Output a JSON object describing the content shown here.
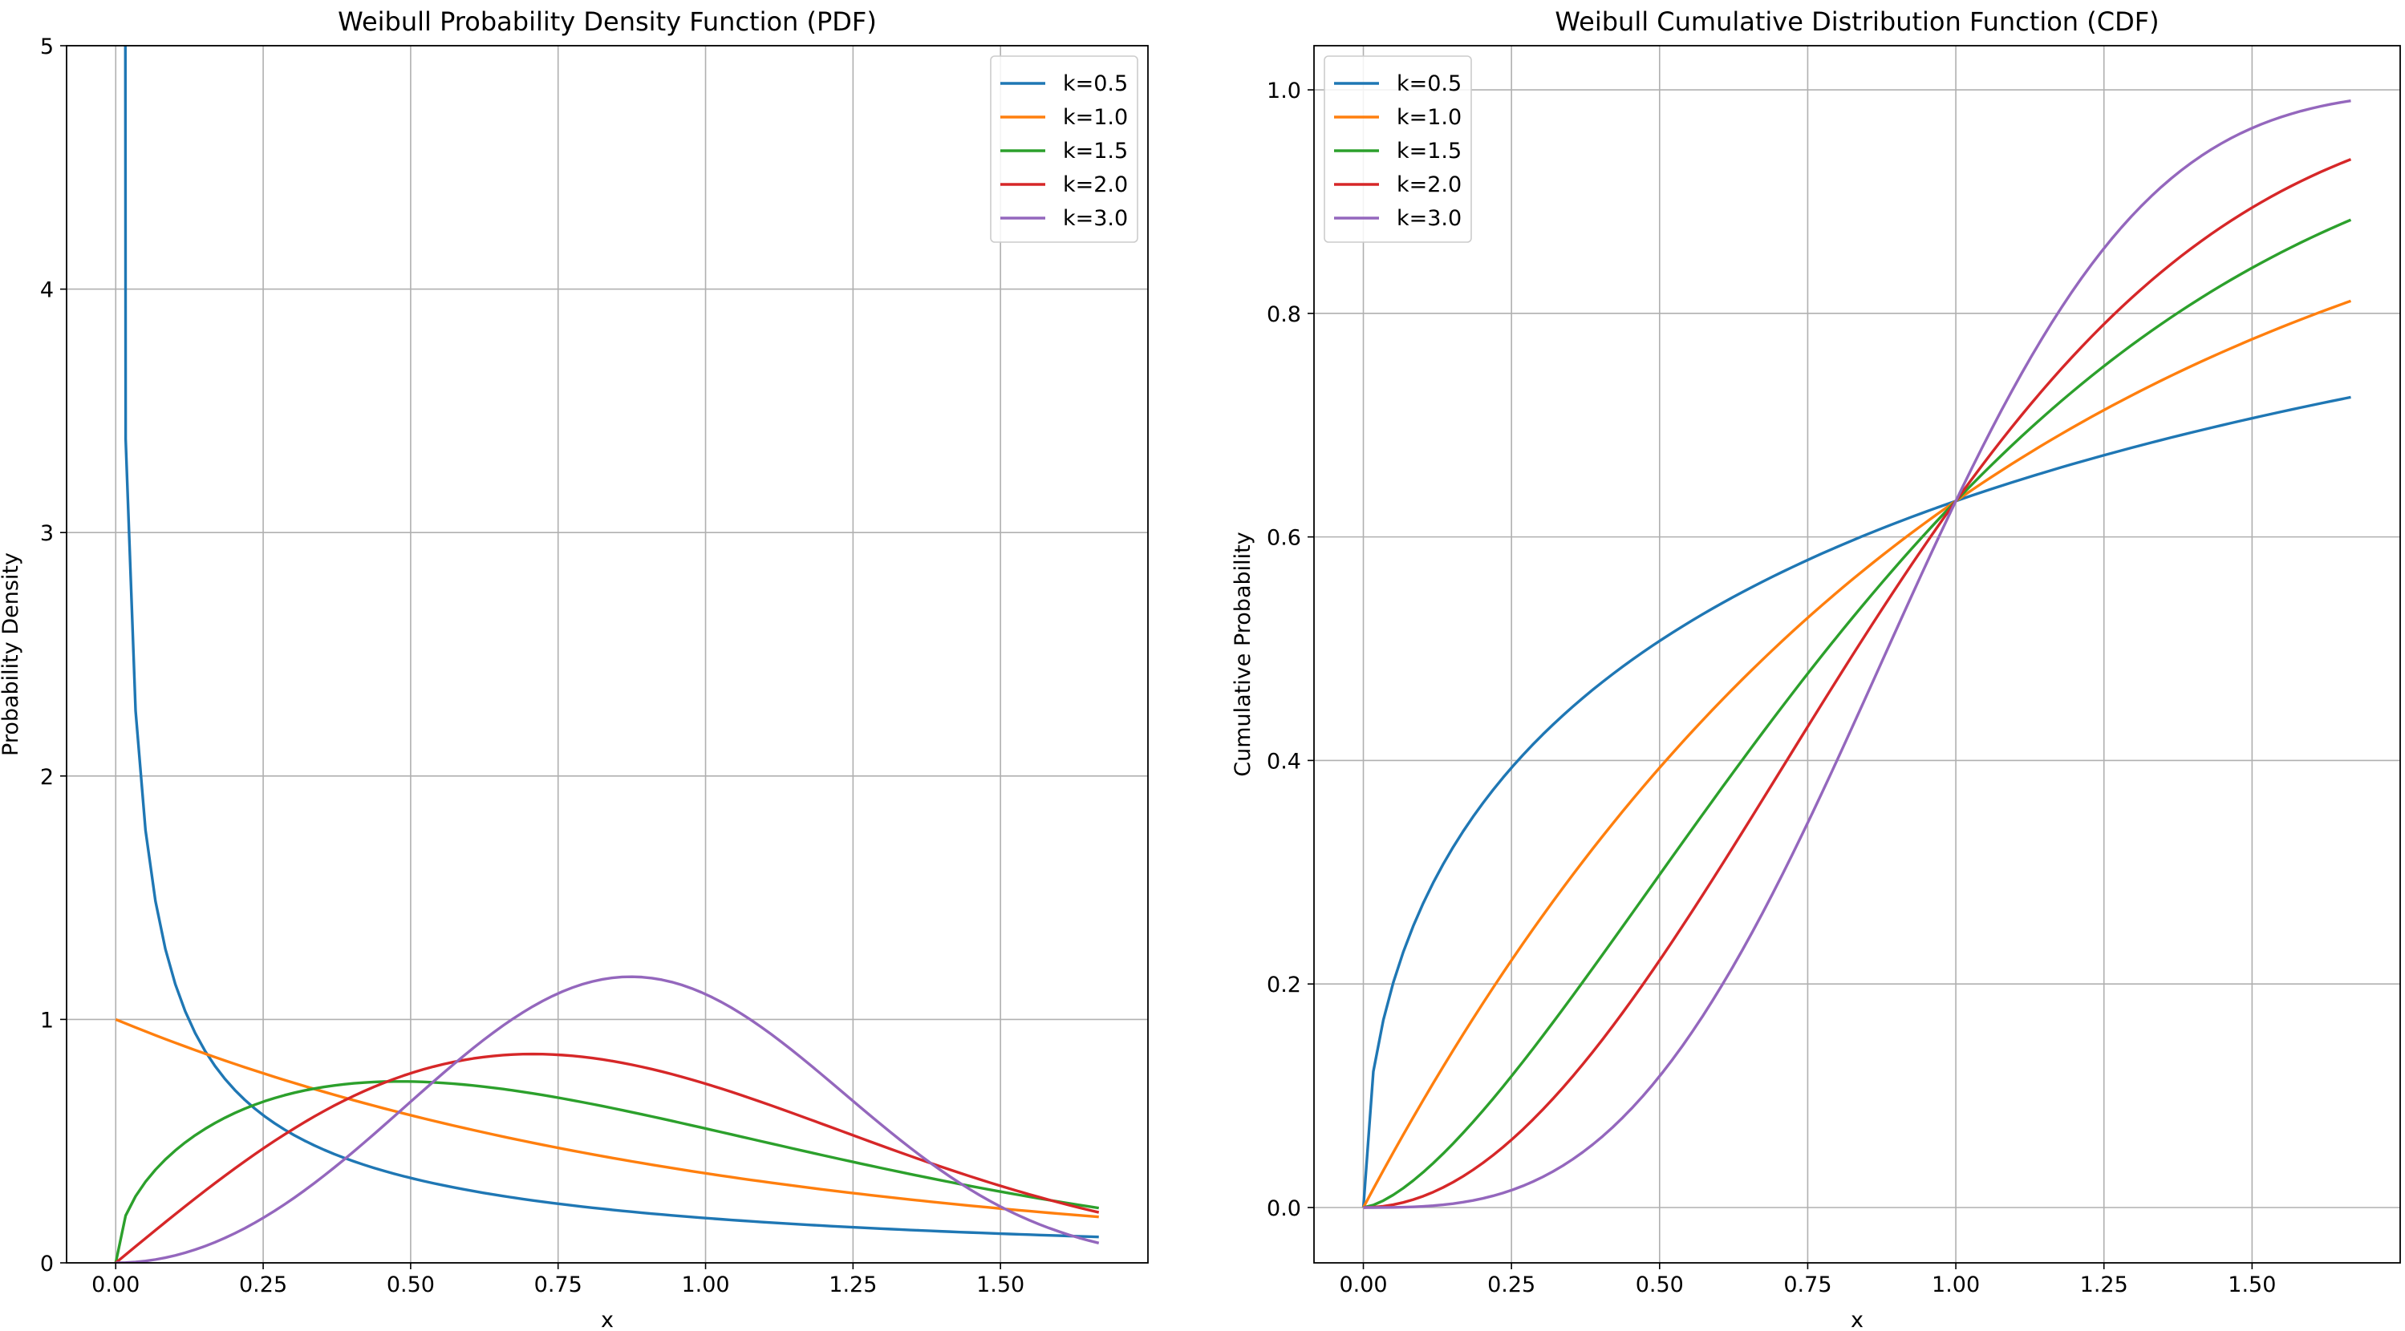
{
  "chart_data": [
    {
      "type": "line",
      "title": "Weibull Probability Density Function (PDF)",
      "xlabel": "x",
      "ylabel": "Probability Density",
      "xlim": [
        -0.0833,
        1.75
      ],
      "ylim": [
        0,
        5
      ],
      "xticks": [
        "0.00",
        "0.25",
        "0.50",
        "0.75",
        "1.00",
        "1.25",
        "1.50"
      ],
      "yticks": [
        "0",
        "1",
        "2",
        "3",
        "4",
        "5"
      ],
      "grid": true,
      "legend_position": "upper right",
      "x_range": [
        0,
        1.6667
      ],
      "series": [
        {
          "name": "k=0.5",
          "shape": 0.5,
          "color": "#1f77b4"
        },
        {
          "name": "k=1.0",
          "shape": 1.0,
          "color": "#ff7f0e"
        },
        {
          "name": "k=1.5",
          "shape": 1.5,
          "color": "#2ca02c"
        },
        {
          "name": "k=2.0",
          "shape": 2.0,
          "color": "#d62728"
        },
        {
          "name": "k=3.0",
          "shape": 3.0,
          "color": "#9467bd"
        }
      ]
    },
    {
      "type": "line",
      "title": "Weibull Cumulative Distribution Function (CDF)",
      "xlabel": "x",
      "ylabel": "Cumulative Probability",
      "xlim": [
        -0.0833,
        1.75
      ],
      "ylim": [
        -0.0495,
        1.0395
      ],
      "xticks": [
        "0.00",
        "0.25",
        "0.50",
        "0.75",
        "1.00",
        "1.25",
        "1.50"
      ],
      "yticks": [
        "0.0",
        "0.2",
        "0.4",
        "0.6",
        "0.8",
        "1.0"
      ],
      "grid": true,
      "legend_position": "upper left",
      "x_range": [
        0,
        1.6667
      ],
      "series": [
        {
          "name": "k=0.5",
          "shape": 0.5,
          "color": "#1f77b4"
        },
        {
          "name": "k=1.0",
          "shape": 1.0,
          "color": "#ff7f0e"
        },
        {
          "name": "k=1.5",
          "shape": 1.5,
          "color": "#2ca02c"
        },
        {
          "name": "k=2.0",
          "shape": 2.0,
          "color": "#d62728"
        },
        {
          "name": "k=3.0",
          "shape": 3.0,
          "color": "#9467bd"
        }
      ]
    }
  ]
}
